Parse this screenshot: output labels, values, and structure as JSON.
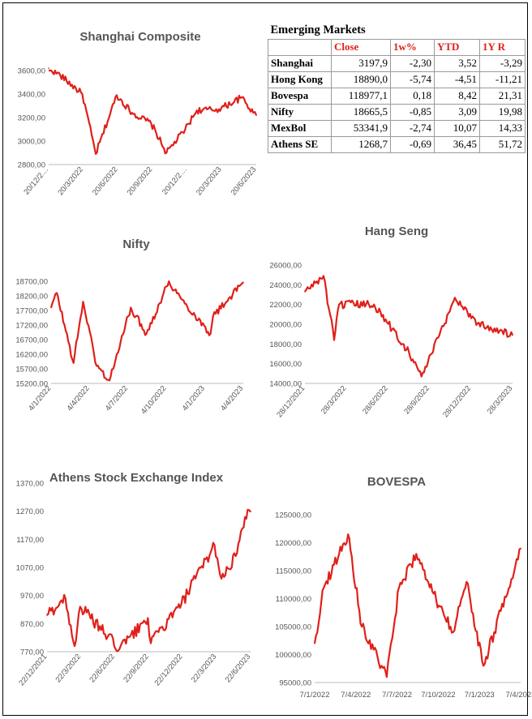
{
  "table": {
    "title": "Emerging Markets",
    "headers": [
      "Close",
      "1w%",
      "YTD",
      "1Y R"
    ],
    "rows": [
      {
        "name": "Shanghai",
        "close": "3197,9",
        "w1": "-2,30",
        "ytd": "3,52",
        "y1": "-3,29"
      },
      {
        "name": "Hong Kong",
        "close": "18890,0",
        "w1": "-5,74",
        "ytd": "-4,51",
        "y1": "-11,21"
      },
      {
        "name": "Bovespa",
        "close": "118977,1",
        "w1": "0,18",
        "ytd": "8,42",
        "y1": "21,31"
      },
      {
        "name": "Nifty",
        "close": "18665,5",
        "w1": "-0,85",
        "ytd": "3,09",
        "y1": "19,98"
      },
      {
        "name": "MexBol",
        "close": "53341,9",
        "w1": "-2,74",
        "ytd": "10,07",
        "y1": "14,33"
      },
      {
        "name": "Athens SE",
        "close": "1268,7",
        "w1": "-0,69",
        "ytd": "36,45",
        "y1": "51,72"
      }
    ]
  },
  "colors": {
    "series": "#e0201a",
    "text": "#555555"
  },
  "chart_data": [
    {
      "type": "line",
      "title": "Shanghai Composite",
      "yticks": [
        "3600,00",
        "3400,00",
        "3200,00",
        "3000,00",
        "2800,00"
      ],
      "ylim": [
        2800,
        3600
      ],
      "xticks": [
        "20/12/2…",
        "20/3/2022",
        "20/6/2022",
        "20/9/2022",
        "20/12/2…",
        "20/3/2023",
        "20/6/2023"
      ],
      "x": [
        "20/12/2021",
        "20/1/2022",
        "20/3/2022",
        "25/4/2022",
        "20/6/2022",
        "31/7/2022",
        "20/9/2022",
        "31/10/2022",
        "20/12/2022",
        "20/1/2023",
        "20/3/2023",
        "20/5/2023",
        "20/6/2023",
        "28/6/2023"
      ],
      "values": [
        3620,
        3560,
        3400,
        2890,
        3390,
        3240,
        3150,
        2900,
        3100,
        3260,
        3270,
        3370,
        3240,
        3220
      ]
    },
    {
      "type": "line",
      "title": "Nifty",
      "yticks": [
        "18700,00",
        "18200,00",
        "17700,00",
        "17200,00",
        "16700,00",
        "16200,00",
        "15700,00",
        "15200,00"
      ],
      "ylim": [
        15200,
        18700
      ],
      "xticks": [
        "4/1/2022",
        "4/4/2022",
        "4/7/2022",
        "4/10/2022",
        "4/1/2023",
        "4/4/2023"
      ],
      "x": [
        "4/1/2022",
        "20/1/2022",
        "8/3/2022",
        "4/4/2022",
        "12/5/2022",
        "17/6/2022",
        "4/7/2022",
        "16/8/2022",
        "29/9/2022",
        "1/12/2022",
        "4/1/2023",
        "28/3/2023",
        "4/4/2023",
        "28/6/2023"
      ],
      "values": [
        17800,
        18300,
        15900,
        18000,
        15800,
        15300,
        16000,
        17800,
        16900,
        18700,
        18100,
        16900,
        17500,
        18665
      ]
    },
    {
      "type": "line",
      "title": "Hang Seng",
      "yticks": [
        "26000,00",
        "24000,00",
        "22000,00",
        "20000,00",
        "18000,00",
        "16000,00",
        "14000,00"
      ],
      "ylim": [
        14000,
        26000
      ],
      "xticks": [
        "28/12/2021",
        "28/3/2022",
        "28/6/2022",
        "28/9/2022",
        "28/12/2022",
        "28/3/2023"
      ],
      "x": [
        "28/12/2021",
        "15/2/2022",
        "15/3/2022",
        "28/3/2022",
        "28/6/2022",
        "28/9/2022",
        "31/10/2022",
        "28/12/2022",
        "27/1/2023",
        "28/3/2023",
        "28/6/2023"
      ],
      "values": [
        23300,
        24900,
        18400,
        22000,
        22000,
        17200,
        14700,
        19800,
        22700,
        20100,
        18890
      ]
    },
    {
      "type": "line",
      "title": "Athens Stock Exchange Index",
      "yticks": [
        "1370,00",
        "1270,00",
        "1170,00",
        "1070,00",
        "970,00",
        "870,00",
        "770,00"
      ],
      "ylim": [
        770,
        1370
      ],
      "xticks": [
        "22/12/2021",
        "22/3/2022",
        "22/6/2022",
        "22/9/2022",
        "22/12/2022",
        "22/3/2023",
        "22/6/2023"
      ],
      "x": [
        "22/12/2021",
        "10/2/2022",
        "7/3/2022",
        "22/3/2022",
        "7/7/2022",
        "22/9/2022",
        "30/9/2022",
        "22/12/2022",
        "22/3/2023",
        "10/4/2023",
        "22/5/2023",
        "20/6/2023",
        "28/6/2023"
      ],
      "values": [
        900,
        960,
        790,
        930,
        780,
        890,
        800,
        940,
        1150,
        1030,
        1120,
        1275,
        1268
      ]
    },
    {
      "type": "line",
      "title": "BOVESPA",
      "yticks": [
        "125000,00",
        "120000,00",
        "115000,00",
        "110000,00",
        "105000,00",
        "100000,00",
        "95000,00"
      ],
      "ylim": [
        95000,
        125000
      ],
      "xticks": [
        "7/1/2022",
        "7/4/2022",
        "7/7/2022",
        "7/10/2022",
        "7/1/2023",
        "7/4/2023"
      ],
      "x": [
        "7/1/2022",
        "31/1/2022",
        "4/4/2022",
        "10/5/2022",
        "14/7/2022",
        "15/8/2022",
        "29/9/2022",
        "3/11/2022",
        "3/1/2023",
        "7/2/2023",
        "23/3/2023",
        "20/4/2023",
        "28/6/2023"
      ],
      "values": [
        102000,
        112000,
        121500,
        105000,
        96000,
        112000,
        118000,
        112000,
        104000,
        113000,
        98000,
        104000,
        119000
      ]
    }
  ]
}
